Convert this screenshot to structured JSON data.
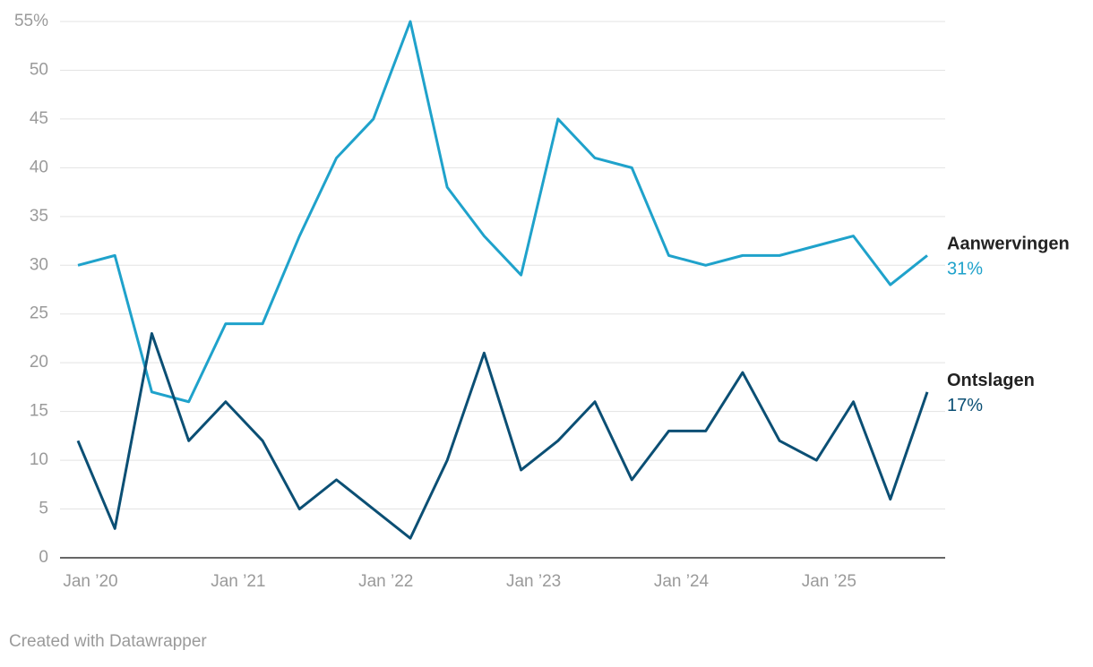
{
  "chart_data": {
    "type": "line",
    "categories": [
      "Jan ’20",
      null,
      null,
      null,
      "Jan ’21",
      null,
      null,
      null,
      "Jan ’22",
      null,
      null,
      null,
      "Jan ’23",
      null,
      null,
      null,
      "Jan ’24",
      null,
      null,
      null,
      "Jan ’25",
      null,
      null,
      null
    ],
    "series": [
      {
        "name": "Aanwervingen",
        "color": "#1fa2cb",
        "values": [
          30,
          31,
          17,
          16,
          24,
          24,
          33,
          41,
          45,
          55,
          38,
          33,
          29,
          45,
          41,
          40,
          31,
          30,
          31,
          31,
          32,
          33,
          28,
          31
        ],
        "value_labels": [
          null,
          null,
          null,
          null,
          null,
          null,
          null,
          null,
          null,
          null,
          null,
          null,
          null,
          null,
          null,
          null,
          null,
          null,
          null,
          null,
          null,
          null,
          null,
          "31%"
        ]
      },
      {
        "name": "Ontslagen",
        "color": "#0b4f74",
        "values": [
          12,
          3,
          23,
          12,
          16,
          12,
          5,
          8,
          5,
          2,
          10,
          21,
          9,
          12,
          16,
          8,
          13,
          13,
          19,
          12,
          10,
          16,
          6,
          17
        ],
        "value_labels": [
          null,
          null,
          null,
          null,
          null,
          null,
          null,
          null,
          null,
          null,
          null,
          null,
          null,
          null,
          null,
          null,
          null,
          null,
          null,
          null,
          null,
          null,
          null,
          "17%"
        ]
      }
    ],
    "ylim": [
      0,
      55
    ],
    "yticks": [
      0,
      5,
      10,
      15,
      20,
      25,
      30,
      35,
      40,
      45,
      50,
      {
        "value": 55,
        "label": "55%"
      }
    ],
    "grid": true,
    "credit": "Created with Datawrapper"
  }
}
